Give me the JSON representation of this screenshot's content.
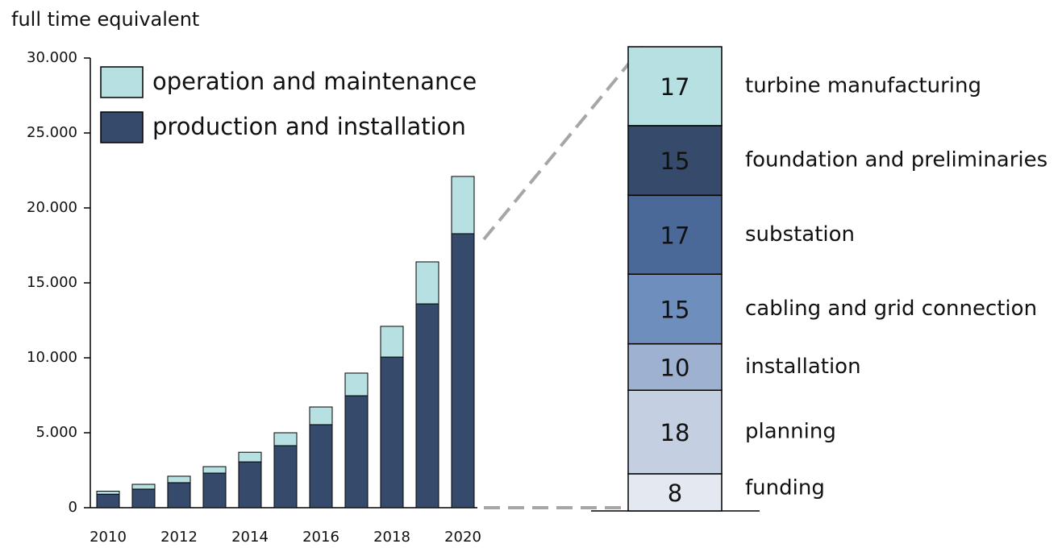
{
  "chart_data": [
    {
      "type": "stacked-bar",
      "y_label": "full time equivalent",
      "categories": [
        "2010",
        null,
        "2012",
        null,
        "2014",
        null,
        "2016",
        null,
        "2018",
        null,
        "2020"
      ],
      "series": [
        {
          "name": "production and installation",
          "color": "#364b6b",
          "values": [
            900,
            1240,
            1670,
            2310,
            3060,
            4140,
            5540,
            7470,
            10050,
            13600,
            18280
          ]
        },
        {
          "name": "operation and maintenance",
          "color": "#b7e0e3",
          "values": [
            200,
            320,
            430,
            430,
            640,
            860,
            1180,
            1510,
            2050,
            2800,
            3820
          ]
        }
      ],
      "ylim": [
        0,
        30000
      ],
      "yticks": [
        0,
        {
          "value": 5000,
          "label": "5.000"
        },
        {
          "value": 10000,
          "label": "10.000"
        },
        {
          "value": 15000,
          "label": "15.000"
        },
        {
          "value": 20000,
          "label": "20.000"
        },
        {
          "value": 25000,
          "label": "25.000"
        },
        {
          "value": 30000,
          "label": "30.000"
        }
      ]
    },
    {
      "type": "stacked-column",
      "series": [
        {
          "name": "funding",
          "color": "#e3e8f1",
          "values": [
            8
          ]
        },
        {
          "name": "planning",
          "color": "#c4cfe2",
          "values": [
            18
          ]
        },
        {
          "name": "installation",
          "color": "#9fb1d0",
          "values": [
            10
          ]
        },
        {
          "name": "cabling and grid connection",
          "color": "#6e8fbd",
          "values": [
            15
          ]
        },
        {
          "name": "substation",
          "color": "#4a6898",
          "values": [
            17
          ]
        },
        {
          "name": "foundation and preliminaries",
          "color": "#364b6b",
          "values": [
            15
          ]
        },
        {
          "name": "turbine manufacturing",
          "color": "#b7e0e3",
          "values": [
            17
          ]
        }
      ]
    }
  ]
}
